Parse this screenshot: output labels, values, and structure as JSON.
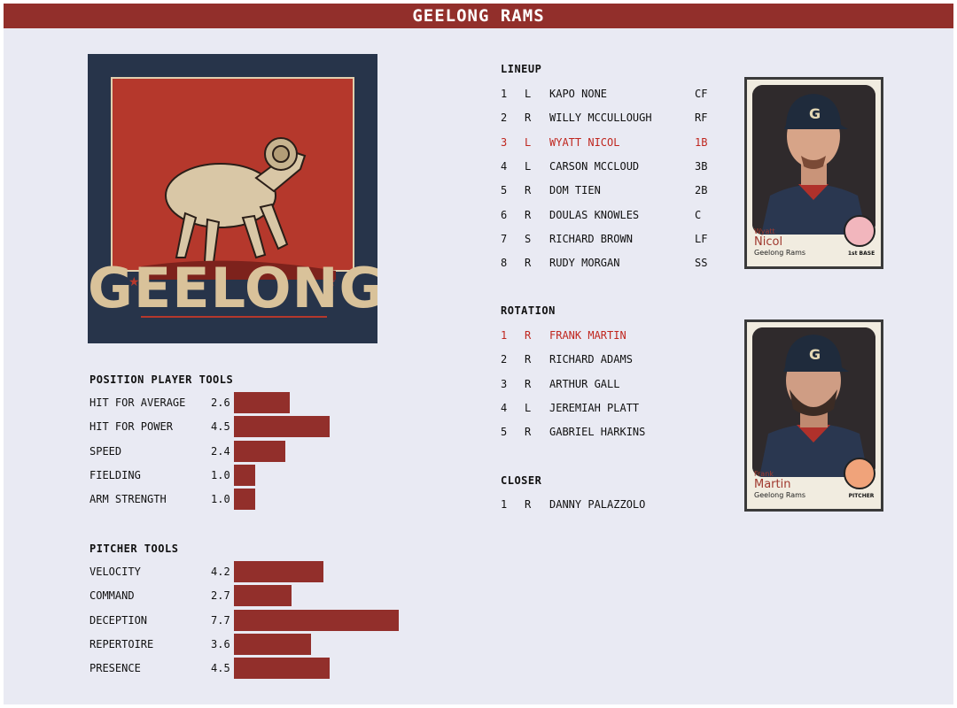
{
  "header": {
    "title": "GEELONG RAMS"
  },
  "logo": {
    "word": "GEELONG",
    "icon": "ram-icon",
    "colors": {
      "navy": "#27344a",
      "red": "#b5382c",
      "cream": "#d9c29a"
    }
  },
  "position_tools": {
    "title": "POSITION PLAYER TOOLS",
    "items": [
      {
        "label": "HIT FOR AVERAGE",
        "value": "2.6"
      },
      {
        "label": "HIT FOR POWER",
        "value": "4.5"
      },
      {
        "label": "SPEED",
        "value": "2.4"
      },
      {
        "label": "FIELDING",
        "value": "1.0"
      },
      {
        "label": "ARM STRENGTH",
        "value": "1.0"
      }
    ]
  },
  "pitcher_tools": {
    "title": "PITCHER TOOLS",
    "items": [
      {
        "label": "VELOCITY",
        "value": "4.2"
      },
      {
        "label": "COMMAND",
        "value": "2.7"
      },
      {
        "label": "DECEPTION",
        "value": "7.7"
      },
      {
        "label": "REPERTOIRE",
        "value": "3.6"
      },
      {
        "label": "PRESENCE",
        "value": "4.5"
      }
    ]
  },
  "lineup": {
    "title": "LINEUP",
    "rows": [
      {
        "num": "1",
        "hand": "L",
        "name": "KAPO NONE",
        "pos": "CF",
        "highlight": false
      },
      {
        "num": "2",
        "hand": "R",
        "name": "WILLY MCCULLOUGH",
        "pos": "RF",
        "highlight": false
      },
      {
        "num": "3",
        "hand": "L",
        "name": "WYATT NICOL",
        "pos": "1B",
        "highlight": true
      },
      {
        "num": "4",
        "hand": "L",
        "name": "CARSON MCCLOUD",
        "pos": "3B",
        "highlight": false
      },
      {
        "num": "5",
        "hand": "R",
        "name": "DOM TIEN",
        "pos": "2B",
        "highlight": false
      },
      {
        "num": "6",
        "hand": "R",
        "name": "DOULAS KNOWLES",
        "pos": "C",
        "highlight": false
      },
      {
        "num": "7",
        "hand": "S",
        "name": "RICHARD BROWN",
        "pos": "LF",
        "highlight": false
      },
      {
        "num": "8",
        "hand": "R",
        "name": "RUDY MORGAN",
        "pos": "SS",
        "highlight": false
      }
    ]
  },
  "rotation": {
    "title": "ROTATION",
    "rows": [
      {
        "num": "1",
        "hand": "R",
        "name": "FRANK MARTIN",
        "highlight": true
      },
      {
        "num": "2",
        "hand": "R",
        "name": "RICHARD ADAMS",
        "highlight": false
      },
      {
        "num": "3",
        "hand": "R",
        "name": "ARTHUR GALL",
        "highlight": false
      },
      {
        "num": "4",
        "hand": "L",
        "name": "JEREMIAH PLATT",
        "highlight": false
      },
      {
        "num": "5",
        "hand": "R",
        "name": "GABRIEL HARKINS",
        "highlight": false
      }
    ]
  },
  "closer": {
    "title": "CLOSER",
    "rows": [
      {
        "num": "1",
        "hand": "R",
        "name": "DANNY PALAZZOLO"
      }
    ]
  },
  "cards": {
    "batter": {
      "first": "Wyatt",
      "last": "Nicol",
      "team": "Geelong Rams",
      "position": "1st BASE",
      "cap_letter": "G"
    },
    "pitcher": {
      "first": "Frank",
      "last": "Martin",
      "team": "Geelong Rams",
      "position": "PITCHER",
      "cap_letter": "G"
    }
  },
  "colors": {
    "accent": "#922f2b",
    "highlight_text": "#c0271f",
    "background": "#e9eaf3"
  }
}
